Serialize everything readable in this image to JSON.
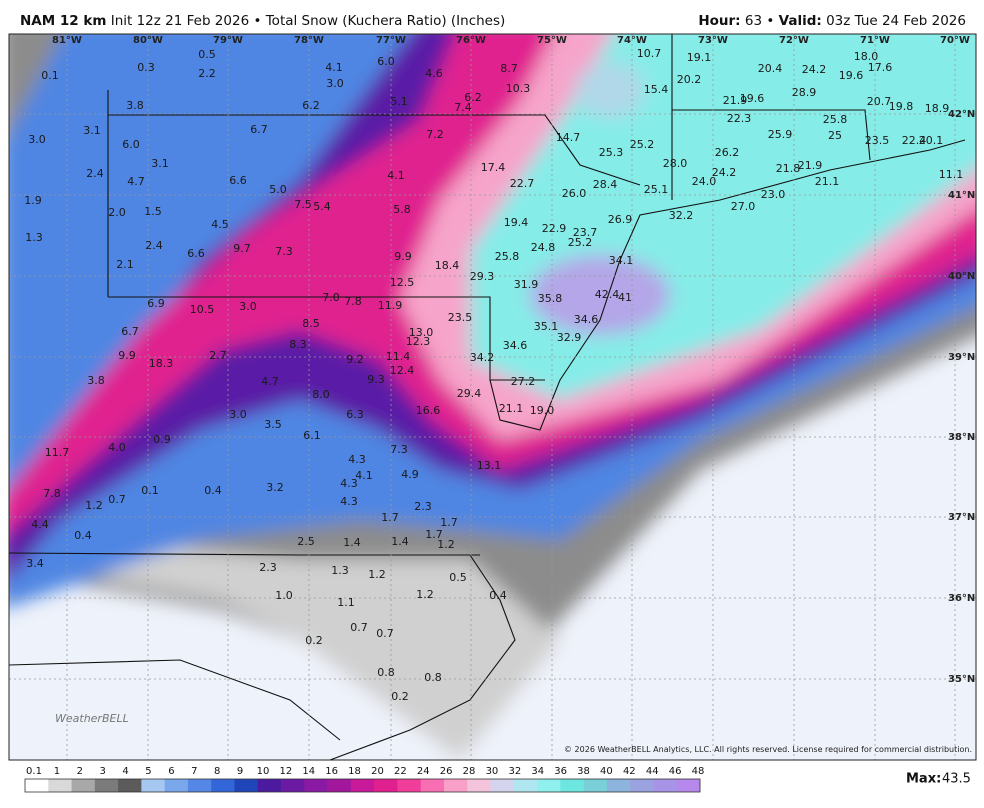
{
  "header": {
    "model": "NAM 12 km",
    "run": "Init 12z 21 Feb 2026",
    "separator": "•",
    "product": "Total Snow (Kuchera Ratio) (Inches)",
    "hour_label": "Hour:",
    "hour_value": "63",
    "valid_label": "Valid:",
    "valid_value": "03z Tue 24 Feb 2026"
  },
  "map": {
    "lon_labels": [
      "81°W",
      "80°W",
      "79°W",
      "78°W",
      "77°W",
      "76°W",
      "75°W",
      "74°W",
      "73°W",
      "72°W",
      "71°W",
      "70°W"
    ],
    "lat_labels": [
      "42°N",
      "41°N",
      "40°N",
      "39°N",
      "38°N",
      "37°N",
      "36°N",
      "35°N"
    ],
    "snow_labels": [
      "0.1",
      "0.3",
      "0.5",
      "2.2",
      "3.8",
      "3.0",
      "3.1",
      "6.0",
      "2.4",
      "4.7",
      "3.1",
      "1.9",
      "2.0",
      "1.5",
      "1.3",
      "2.4",
      "2.1",
      "6.6",
      "9.7",
      "4.5",
      "6.6",
      "5.0",
      "6.7",
      "7.5",
      "5.4",
      "7.3",
      "6.2",
      "4.1",
      "3.0",
      "6.0",
      "4.6",
      "5.1",
      "8.7",
      "10.3",
      "6.2",
      "7.4",
      "7.2",
      "4.1",
      "5.8",
      "9.9",
      "18.4",
      "12.5",
      "17.4",
      "22.7",
      "19.4",
      "14.7",
      "25.3",
      "25.2",
      "28.4",
      "26.0",
      "10.7",
      "15.4",
      "19.1",
      "20.2",
      "20.4",
      "24.2",
      "18.0",
      "17.6",
      "19.6",
      "28.9",
      "21.9",
      "19.6",
      "22.3",
      "25.9",
      "25.8",
      "20.7",
      "19.8",
      "18.9",
      "25",
      "23.5",
      "22.4",
      "20.1",
      "11.1",
      "28.0",
      "26.2",
      "25.1",
      "24.0",
      "24.2",
      "21.8",
      "21.9",
      "21.1",
      "27.0",
      "23.0",
      "26.9",
      "32.2",
      "22.9",
      "23.7",
      "24.8",
      "25.2",
      "25.8",
      "34.1",
      "29.3",
      "31.9",
      "35.8",
      "42.4",
      "41",
      "35.1",
      "34.6",
      "32.9",
      "23.5",
      "13.0",
      "12.3",
      "34.2",
      "34.6",
      "27.2",
      "21.1",
      "19.0",
      "29.4",
      "16.6",
      "13.1",
      "11.4",
      "12.4",
      "9.3",
      "9.2",
      "11.9",
      "7.8",
      "7.0",
      "8.5",
      "8.3",
      "3.0",
      "10.5",
      "6.9",
      "6.7",
      "9.9",
      "18.3",
      "3.8",
      "2.7",
      "4.7",
      "8.0",
      "6.3",
      "7.3",
      "4.9",
      "4.3",
      "4.1",
      "4.3",
      "4.3",
      "3.0",
      "3.5",
      "6.1",
      "0.9",
      "4.0",
      "11.7",
      "7.8",
      "0.7",
      "1.2",
      "0.1",
      "0.4",
      "3.2",
      "4.4",
      "0.4",
      "3.4",
      "1.7",
      "2.3",
      "1.7",
      "1.7",
      "1.2",
      "1.4",
      "1.4",
      "2.5",
      "2.3",
      "1.3",
      "1.2",
      "0.5",
      "1.2",
      "0.4",
      "1.0",
      "1.1",
      "0.7",
      "0.7",
      "0.2",
      "0.8",
      "0.8",
      "0.2"
    ],
    "logo": "WeatherBELL",
    "copyright": "© 2026 WeatherBELL Analytics, LLC. All rights reserved. License required for commercial distribution."
  },
  "legend": {
    "labels": [
      0.1,
      1,
      2,
      3,
      4,
      5,
      6,
      7,
      8,
      9,
      10,
      12,
      14,
      16,
      18,
      20,
      22,
      24,
      26,
      28,
      30,
      32,
      34,
      36,
      38,
      40,
      42,
      44,
      46,
      48
    ],
    "max_label": "Max:",
    "max_value": 43.5
  }
}
